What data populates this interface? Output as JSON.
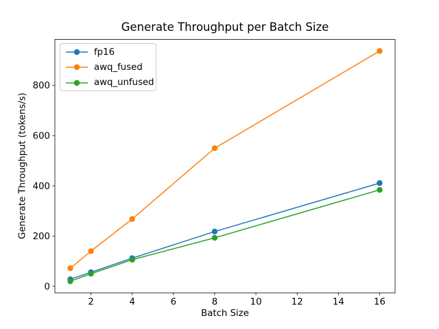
{
  "chart_data": {
    "type": "line",
    "title": "Generate Throughput per Batch Size",
    "xlabel": "Batch Size",
    "ylabel": "Generate Throughput (tokens/s)",
    "x": [
      1,
      2,
      4,
      8,
      16
    ],
    "series": [
      {
        "name": "fp16",
        "color": "#1f77b4",
        "values": [
          28,
          56,
          112,
          218,
          411
        ]
      },
      {
        "name": "awq_fused",
        "color": "#ff7f0e",
        "values": [
          72,
          140,
          268,
          550,
          937
        ]
      },
      {
        "name": "awq_unfused",
        "color": "#2ca02c",
        "values": [
          20,
          50,
          106,
          193,
          384
        ]
      }
    ],
    "xticks": [
      2,
      4,
      6,
      8,
      10,
      12,
      14,
      16
    ],
    "yticks": [
      0,
      200,
      400,
      600,
      800
    ],
    "xlim": [
      0.25,
      16.75
    ],
    "ylim": [
      -26,
      983
    ],
    "grid": false,
    "legend_position": "upper-left",
    "marker": "o",
    "background": "#ffffff",
    "spine_color": "#000000"
  }
}
